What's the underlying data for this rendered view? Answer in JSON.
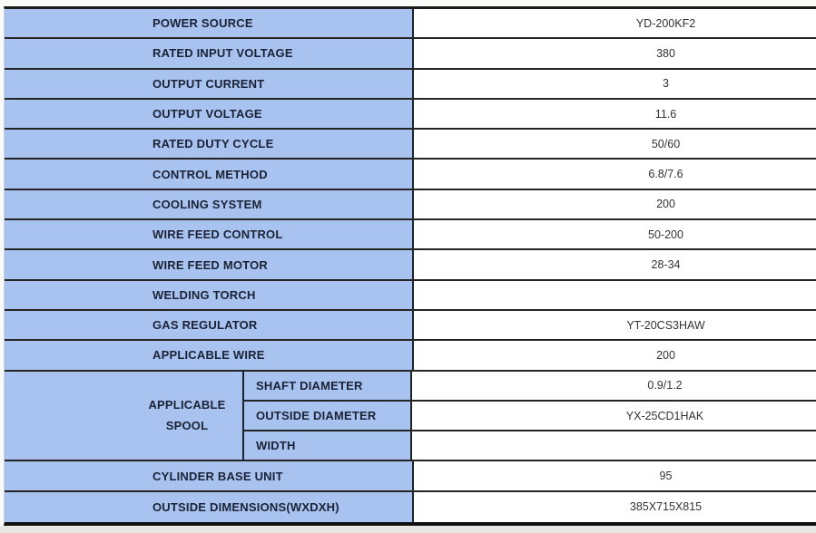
{
  "table": {
    "rows_top": [
      {
        "label": "POWER SOURCE",
        "value": "YD-200KF2"
      },
      {
        "label": "RATED INPUT VOLTAGE",
        "value": "380"
      },
      {
        "label": "OUTPUT CURRENT",
        "value": "3"
      },
      {
        "label": "OUTPUT VOLTAGE",
        "value": "11.6"
      },
      {
        "label": "RATED DUTY CYCLE",
        "value": "50/60"
      },
      {
        "label": "CONTROL METHOD",
        "value": "6.8/7.6"
      },
      {
        "label": "COOLING SYSTEM",
        "value": "200"
      },
      {
        "label": "WIRE FEED CONTROL",
        "value": "50-200"
      },
      {
        "label": "WIRE FEED MOTOR",
        "value": "28-34"
      },
      {
        "label": "WELDING TORCH",
        "value": ""
      },
      {
        "label": "GAS REGULATOR",
        "value": "YT-20CS3HAW"
      },
      {
        "label": "APPLICABLE WIRE",
        "value": "200"
      }
    ],
    "spool_group": {
      "label_line1": "APPLICABLE",
      "label_line2": "SPOOL",
      "sub_rows": [
        {
          "label": "SHAFT DIAMETER",
          "value": "0.9/1.2"
        },
        {
          "label": "OUTSIDE DIAMETER",
          "value": "YX-25CD1HAK"
        },
        {
          "label": "WIDTH",
          "value": ""
        }
      ]
    },
    "rows_bottom": [
      {
        "label": "CYLINDER BASE UNIT",
        "value": "95"
      },
      {
        "label": "OUTSIDE DIMENSIONS(WXDXH)",
        "value": "385X715X815"
      }
    ],
    "colors": {
      "label_bg": "#a9c3f0",
      "row_border": "#242424",
      "column_border": "#1d2330",
      "label_text": "#1b2235",
      "value_text": "#333333"
    }
  }
}
